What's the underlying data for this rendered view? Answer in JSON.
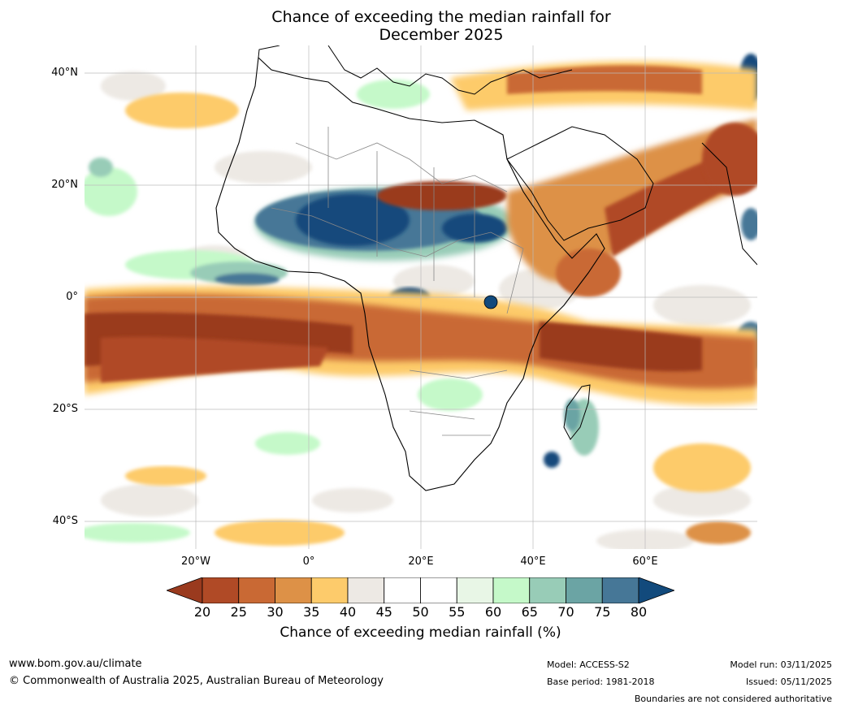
{
  "title": {
    "line1": "Chance of exceeding the median rainfall for",
    "line2": "December 2025"
  },
  "axes": {
    "lat_labels": [
      "40°N",
      "20°N",
      "0°",
      "20°S",
      "40°S"
    ],
    "lon_labels": [
      "20°W",
      "0°",
      "20°E",
      "40°E",
      "60°E"
    ]
  },
  "colorbar": {
    "ticks": [
      "20",
      "25",
      "30",
      "35",
      "40",
      "45",
      "50",
      "55",
      "60",
      "65",
      "70",
      "75",
      "80"
    ],
    "colors": [
      "#9a3a1e",
      "#b04a26",
      "#c96934",
      "#dd9147",
      "#fdcb6b",
      "#ede9e4",
      "#ffffff",
      "#ffffff",
      "#e8f6e6",
      "#c5f9c9",
      "#98ccb7",
      "#6ba4a4",
      "#467797",
      "#124a7c"
    ],
    "label": "Chance of exceeding median rainfall (%)"
  },
  "footer": {
    "website": "www.bom.gov.au/climate",
    "copyright": "© Commonwealth of Australia 2025, Australian Bureau of Meteorology",
    "model": "Model: ACCESS-S2",
    "base_period": "Base period: 1981-2018",
    "model_run": "Model run: 03/11/2025",
    "issued": "Issued: 05/11/2025",
    "disclaimer": "Boundaries are not considered authoritative"
  }
}
